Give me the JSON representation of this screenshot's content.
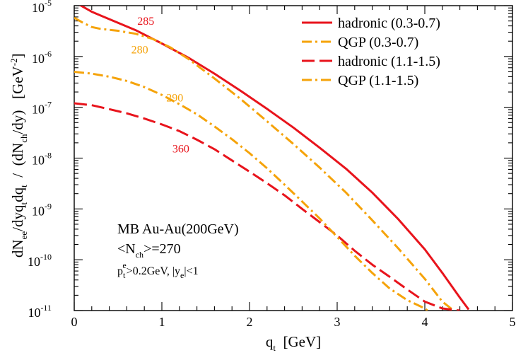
{
  "chart_data": {
    "type": "line",
    "xlim": [
      0,
      5
    ],
    "ylim_log10": [
      -11,
      -5
    ],
    "log_y": true,
    "x_ticks": [
      "0",
      "1",
      "2",
      "3",
      "4",
      "5"
    ],
    "y_ticks": [
      {
        "base": "10",
        "exp": "-5"
      },
      {
        "base": "10",
        "exp": "-6"
      },
      {
        "base": "10",
        "exp": "-7"
      },
      {
        "base": "10",
        "exp": "-8"
      },
      {
        "base": "10",
        "exp": "-9"
      },
      {
        "base": "10",
        "exp": "-10"
      },
      {
        "base": "10",
        "exp": "-11"
      }
    ],
    "xlabel": {
      "main": "q",
      "sub": "t",
      "unit": "  [GeV]"
    },
    "ylabel": {
      "p1": "dN",
      "s1": "ee",
      "p2": "/dyq",
      "s2": "t",
      "p3": "dq",
      "s3": "t",
      "p4": "  /  (dN",
      "s4": "ch",
      "p5": "/dy)   [GeV",
      "sup": "-2",
      "p6": "]"
    },
    "legend_position": "top-right",
    "series": [
      {
        "name": "hadronic (0.3-0.7)",
        "color": "#e8141c",
        "dash": "solid",
        "x": [
          0,
          0.1,
          0.2,
          0.3,
          0.5,
          0.7,
          1.0,
          1.3,
          1.6,
          1.9,
          2.2,
          2.5,
          2.8,
          3.1,
          3.4,
          3.7,
          4.0,
          4.2,
          4.4,
          4.5
        ],
        "y": [
          1.2e-05,
          9.5e-06,
          7.6e-06,
          6.4e-06,
          4.6e-06,
          3.3e-06,
          1.8e-06,
          9.5e-07,
          4.6e-07,
          2.1e-07,
          9.3e-08,
          4e-08,
          1.6e-08,
          6.2e-09,
          2.1e-09,
          6.2e-10,
          1.6e-10,
          5.5e-11,
          1.8e-11,
          1.05e-11
        ]
      },
      {
        "name": "QGP (0.3-0.7)",
        "color": "#f5a30a",
        "dash": "dashdot",
        "x": [
          0,
          0.1,
          0.2,
          0.3,
          0.5,
          0.7,
          0.9,
          1.1,
          1.3,
          1.6,
          1.9,
          2.2,
          2.5,
          2.8,
          3.1,
          3.4,
          3.7,
          4.0,
          4.2,
          4.33
        ],
        "y": [
          5.8e-06,
          4.6e-06,
          3.8e-06,
          3.5e-06,
          3.2e-06,
          2.8e-06,
          2.2e-06,
          1.5e-06,
          9e-07,
          3.7e-07,
          1.45e-07,
          5.3e-08,
          1.9e-08,
          6.5e-09,
          2.1e-09,
          6e-10,
          1.65e-10,
          4.2e-11,
          1.5e-11,
          1e-11
        ]
      },
      {
        "name": "hadronic (1.1-1.5)",
        "color": "#e8141c",
        "dash": "dashed",
        "x": [
          0,
          0.2,
          0.4,
          0.6,
          0.8,
          1.0,
          1.2,
          1.4,
          1.6,
          1.8,
          2.0,
          2.2,
          2.4,
          2.6,
          2.8,
          3.0,
          3.2,
          3.4,
          3.6,
          3.8,
          4.0,
          4.2,
          4.4
        ],
        "y": [
          1.2e-07,
          1.1e-07,
          9.2e-08,
          7.6e-08,
          6e-08,
          4.6e-08,
          3.4e-08,
          2.3e-08,
          1.5e-08,
          9e-09,
          5.4e-09,
          3.2e-09,
          1.85e-09,
          1e-09,
          5.5e-10,
          3e-10,
          1.5e-10,
          8e-11,
          4.6e-11,
          2.6e-11,
          1.5e-11,
          1.1e-11,
          1e-11
        ]
      },
      {
        "name": "QGP (1.1-1.5)",
        "color": "#f5a30a",
        "dash": "dashdot",
        "x": [
          0,
          0.2,
          0.4,
          0.6,
          0.8,
          1.0,
          1.2,
          1.4,
          1.6,
          1.8,
          2.0,
          2.2,
          2.4,
          2.6,
          2.8,
          3.0,
          3.2,
          3.4,
          3.6,
          3.8,
          4.0,
          4.03
        ],
        "y": [
          5e-07,
          4.6e-07,
          4e-07,
          3.3e-07,
          2.5e-07,
          1.75e-07,
          1.15e-07,
          7.3e-08,
          4.2e-08,
          2.35e-08,
          1.25e-08,
          6.3e-09,
          3e-09,
          1.4e-09,
          6.5e-10,
          2.8e-10,
          1.2e-10,
          5.5e-11,
          2.7e-11,
          1.6e-11,
          1.1e-11,
          1e-11
        ]
      }
    ],
    "curve_labels": [
      {
        "text": "285",
        "color": "#e8141c",
        "x": 0.72,
        "y": 4.2e-06
      },
      {
        "text": "280",
        "color": "#f5a30a",
        "x": 0.65,
        "y": 1.15e-06
      },
      {
        "text": "290",
        "color": "#f5a30a",
        "x": 1.05,
        "y": 1.3e-07
      },
      {
        "text": "360",
        "color": "#e8141c",
        "x": 1.12,
        "y": 1.3e-08
      }
    ],
    "annotations": {
      "line1": "MB Au-Au(200GeV)",
      "line2_main": "<N",
      "line2_sub": "ch",
      "line2_rest": ">=270",
      "line3_p": "p",
      "line3_sub": "t",
      "line3_sup": "e",
      "line3_rest": ">0.2GeV, |y",
      "line3_sub2": "e",
      "line3_end": "|<1"
    }
  }
}
